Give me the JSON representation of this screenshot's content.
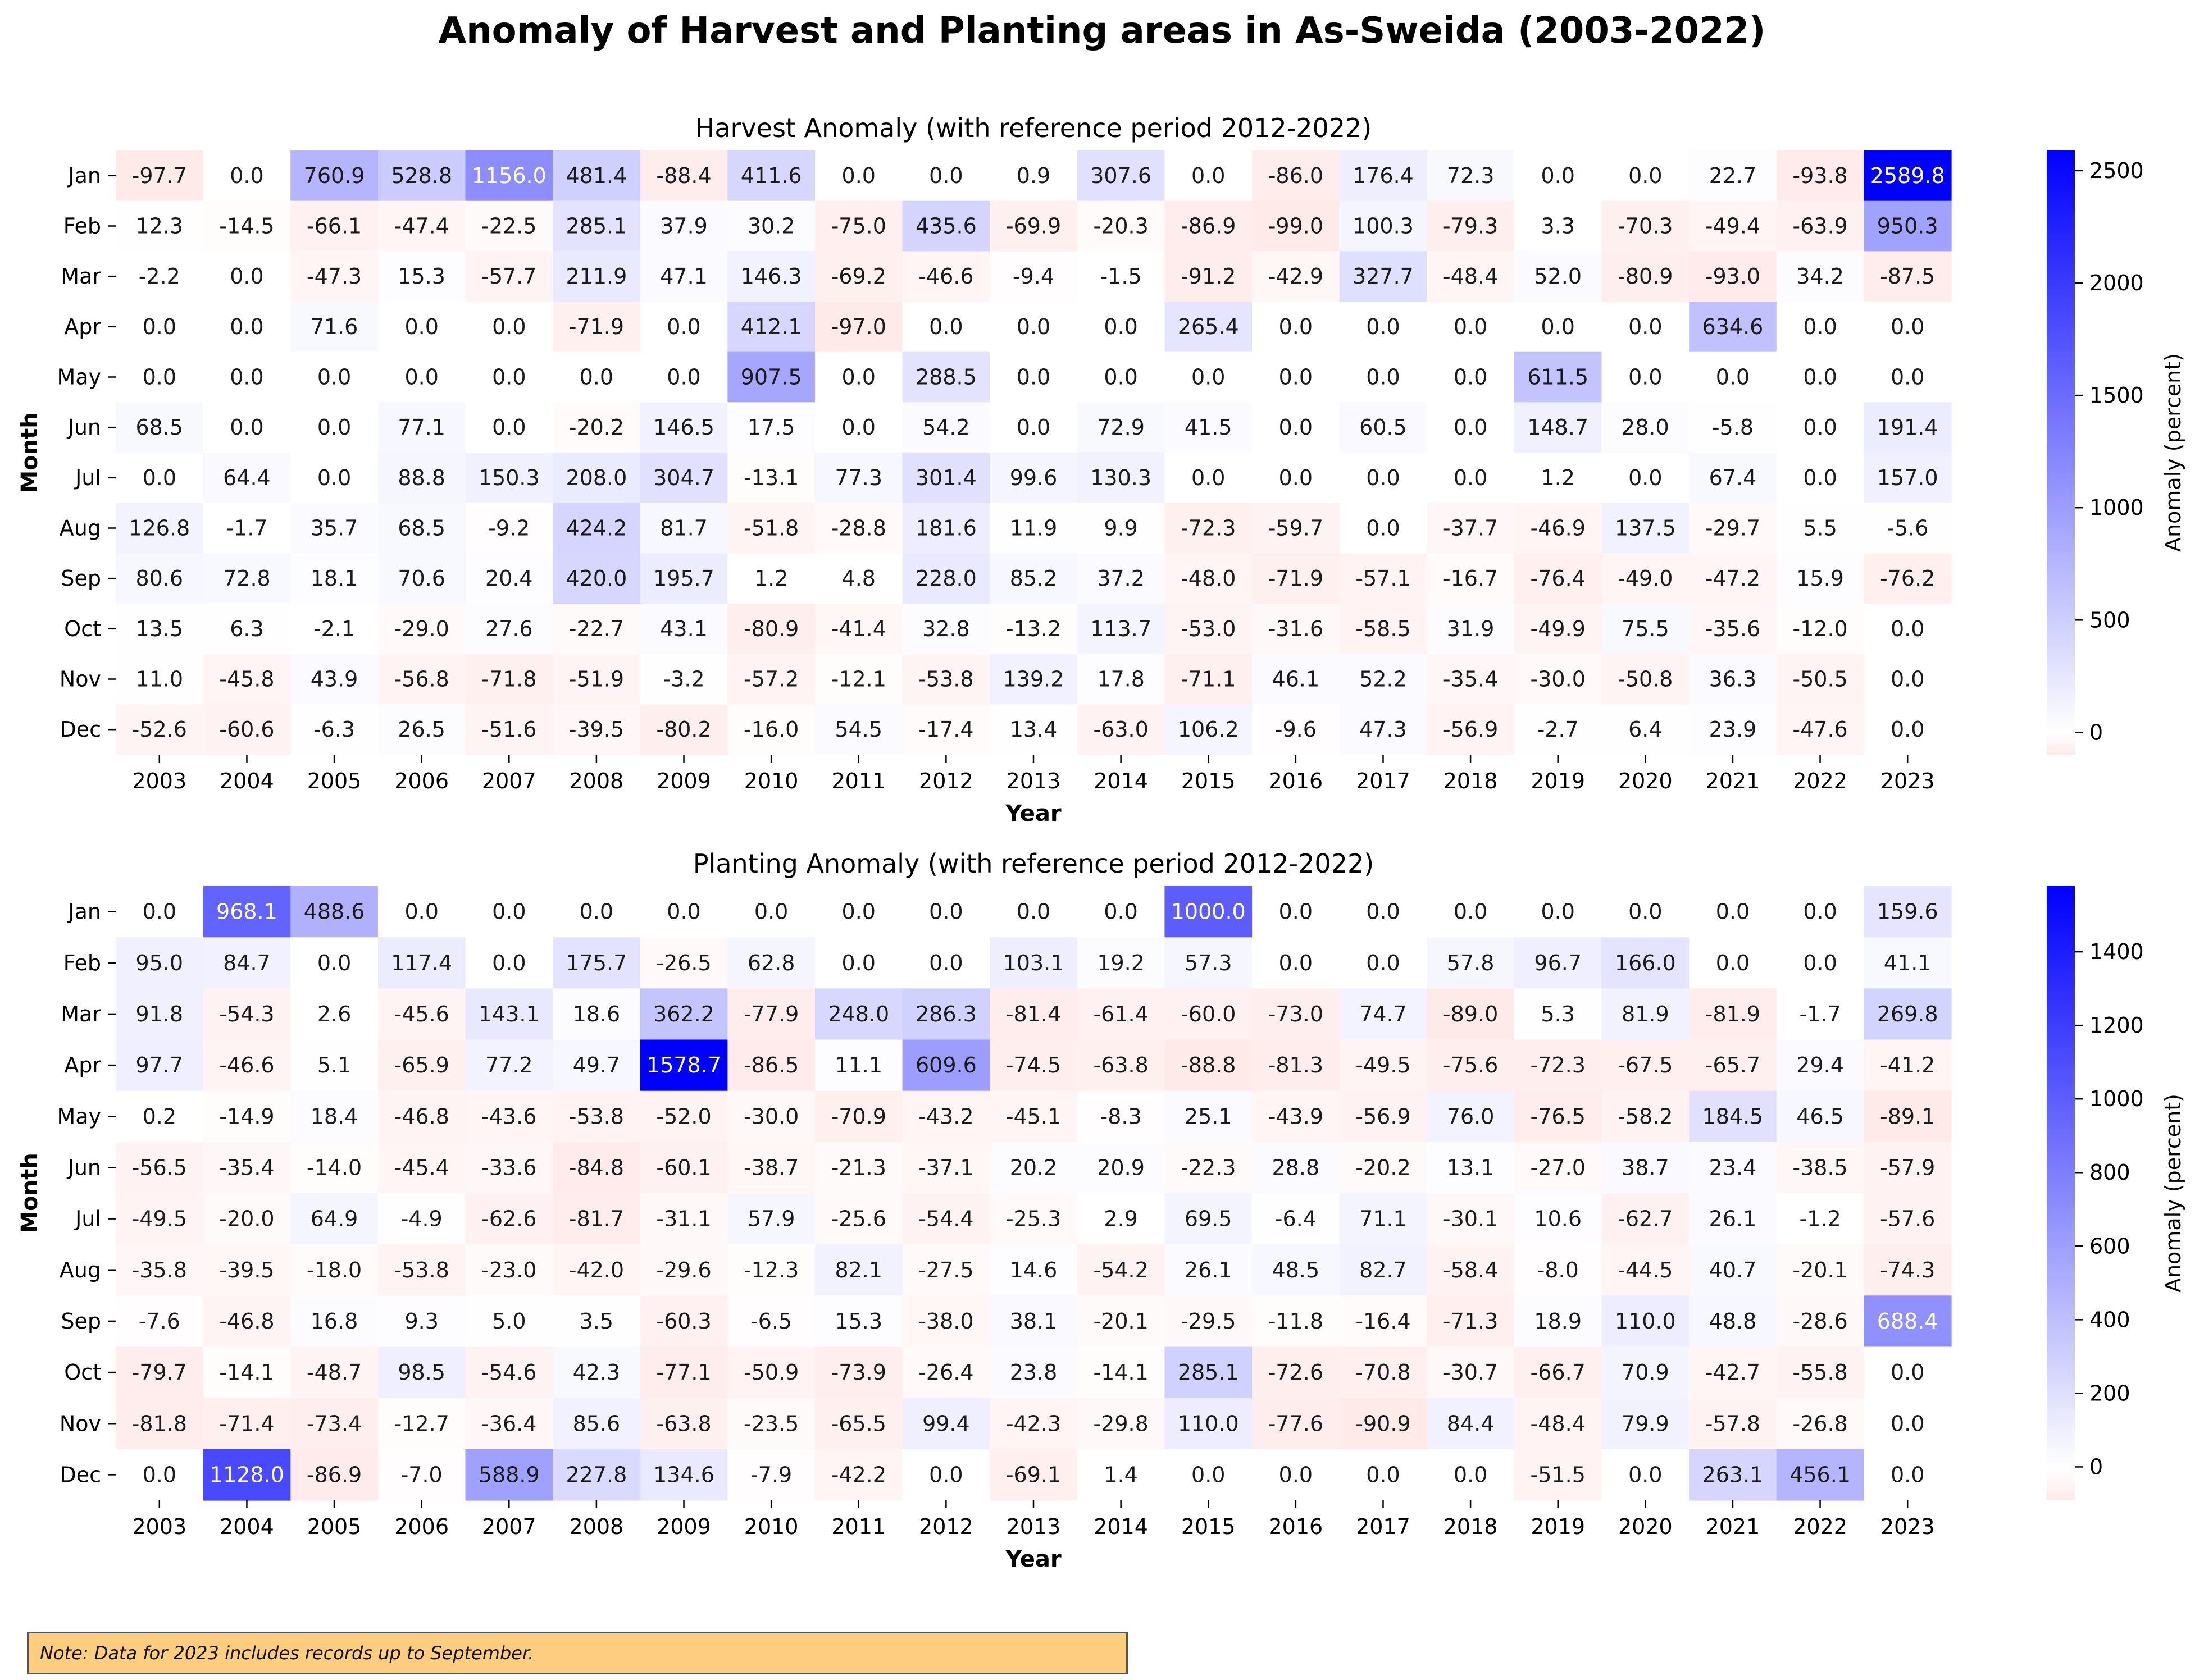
{
  "title": "Anomaly of Harvest and Planting areas in As-Sweida (2003-2022)",
  "note": "Note: Data for 2023 includes records up to September.",
  "colors": {
    "negative": "#ffeaea",
    "zero": "#ffffff",
    "positive": "#0000ff"
  },
  "chart_data": [
    {
      "type": "heatmap",
      "title": "Harvest Anomaly (with reference period 2012-2022)",
      "xlabel": "Year",
      "ylabel": "Month",
      "colorbar_label": "Anomaly (percent)",
      "colorbar_ticks": [
        0,
        500,
        1000,
        1500,
        2000,
        2500
      ],
      "colorbar_tick_labels": [
        "0",
        "500",
        "1000",
        "1500",
        "2000",
        "2500"
      ],
      "vmin": -99.0,
      "vmax": 2589.8,
      "x": [
        "2003",
        "2004",
        "2005",
        "2006",
        "2007",
        "2008",
        "2009",
        "2010",
        "2011",
        "2012",
        "2013",
        "2014",
        "2015",
        "2016",
        "2017",
        "2018",
        "2019",
        "2020",
        "2021",
        "2022",
        "2023"
      ],
      "y": [
        "Jan",
        "Feb",
        "Mar",
        "Apr",
        "May",
        "Jun",
        "Jul",
        "Aug",
        "Sep",
        "Oct",
        "Nov",
        "Dec"
      ],
      "values": [
        [
          -97.7,
          0.0,
          760.9,
          528.8,
          1156.0,
          481.4,
          -88.4,
          411.6,
          0.0,
          0.0,
          0.9,
          307.6,
          0.0,
          -86.0,
          176.4,
          72.3,
          0.0,
          0.0,
          22.7,
          -93.8,
          2589.8
        ],
        [
          12.3,
          -14.5,
          -66.1,
          -47.4,
          -22.5,
          285.1,
          37.9,
          30.2,
          -75.0,
          435.6,
          -69.9,
          -20.3,
          -86.9,
          -99.0,
          100.3,
          -79.3,
          3.3,
          -70.3,
          -49.4,
          -63.9,
          950.3
        ],
        [
          -2.2,
          0.0,
          -47.3,
          15.3,
          -57.7,
          211.9,
          47.1,
          146.3,
          -69.2,
          -46.6,
          -9.4,
          -1.5,
          -91.2,
          -42.9,
          327.7,
          -48.4,
          52.0,
          -80.9,
          -93.0,
          34.2,
          -87.5
        ],
        [
          0.0,
          0.0,
          71.6,
          0.0,
          0.0,
          -71.9,
          0.0,
          412.1,
          -97.0,
          0.0,
          0.0,
          0.0,
          265.4,
          0.0,
          0.0,
          0.0,
          0.0,
          0.0,
          634.6,
          0.0,
          0.0
        ],
        [
          0.0,
          0.0,
          0.0,
          0.0,
          0.0,
          0.0,
          0.0,
          907.5,
          0.0,
          288.5,
          0.0,
          0.0,
          0.0,
          0.0,
          0.0,
          0.0,
          611.5,
          0.0,
          0.0,
          0.0,
          0.0
        ],
        [
          68.5,
          0.0,
          0.0,
          77.1,
          0.0,
          -20.2,
          146.5,
          17.5,
          0.0,
          54.2,
          0.0,
          72.9,
          41.5,
          0.0,
          60.5,
          0.0,
          148.7,
          28.0,
          -5.8,
          0.0,
          191.4
        ],
        [
          0.0,
          64.4,
          0.0,
          88.8,
          150.3,
          208.0,
          304.7,
          -13.1,
          77.3,
          301.4,
          99.6,
          130.3,
          0.0,
          0.0,
          0.0,
          0.0,
          1.2,
          0.0,
          67.4,
          0.0,
          157.0
        ],
        [
          126.8,
          -1.7,
          35.7,
          68.5,
          -9.2,
          424.2,
          81.7,
          -51.8,
          -28.8,
          181.6,
          11.9,
          9.9,
          -72.3,
          -59.7,
          0.0,
          -37.7,
          -46.9,
          137.5,
          -29.7,
          5.5,
          -5.6
        ],
        [
          80.6,
          72.8,
          18.1,
          70.6,
          20.4,
          420.0,
          195.7,
          1.2,
          4.8,
          228.0,
          85.2,
          37.2,
          -48.0,
          -71.9,
          -57.1,
          -16.7,
          -76.4,
          -49.0,
          -47.2,
          15.9,
          -76.2
        ],
        [
          13.5,
          6.3,
          -2.1,
          -29.0,
          27.6,
          -22.7,
          43.1,
          -80.9,
          -41.4,
          32.8,
          -13.2,
          113.7,
          -53.0,
          -31.6,
          -58.5,
          31.9,
          -49.9,
          75.5,
          -35.6,
          -12.0,
          0.0
        ],
        [
          11.0,
          -45.8,
          43.9,
          -56.8,
          -71.8,
          -51.9,
          -3.2,
          -57.2,
          -12.1,
          -53.8,
          139.2,
          17.8,
          -71.1,
          46.1,
          52.2,
          -35.4,
          -30.0,
          -50.8,
          36.3,
          -50.5,
          0.0
        ],
        [
          -52.6,
          -60.6,
          -6.3,
          26.5,
          -51.6,
          -39.5,
          -80.2,
          -16.0,
          54.5,
          -17.4,
          13.4,
          -63.0,
          106.2,
          -9.6,
          47.3,
          -56.9,
          -2.7,
          6.4,
          23.9,
          -47.6,
          0.0
        ]
      ]
    },
    {
      "type": "heatmap",
      "title": "Planting Anomaly (with reference period 2012-2022)",
      "xlabel": "Year",
      "ylabel": "Month",
      "colorbar_label": "Anomaly (percent)",
      "colorbar_ticks": [
        0,
        200,
        400,
        600,
        800,
        1000,
        1200,
        1400
      ],
      "colorbar_tick_labels": [
        "0",
        "200",
        "400",
        "600",
        "800",
        "1000",
        "1200",
        "1400"
      ],
      "vmin": -90.9,
      "vmax": 1578.7,
      "x": [
        "2003",
        "2004",
        "2005",
        "2006",
        "2007",
        "2008",
        "2009",
        "2010",
        "2011",
        "2012",
        "2013",
        "2014",
        "2015",
        "2016",
        "2017",
        "2018",
        "2019",
        "2020",
        "2021",
        "2022",
        "2023"
      ],
      "y": [
        "Jan",
        "Feb",
        "Mar",
        "Apr",
        "May",
        "Jun",
        "Jul",
        "Aug",
        "Sep",
        "Oct",
        "Nov",
        "Dec"
      ],
      "values": [
        [
          0.0,
          968.1,
          488.6,
          0.0,
          0.0,
          0.0,
          0.0,
          0.0,
          0.0,
          0.0,
          0.0,
          0.0,
          1000.0,
          0.0,
          0.0,
          0.0,
          0.0,
          0.0,
          0.0,
          0.0,
          159.6
        ],
        [
          95.0,
          84.7,
          0.0,
          117.4,
          0.0,
          175.7,
          -26.5,
          62.8,
          0.0,
          0.0,
          103.1,
          19.2,
          57.3,
          0.0,
          0.0,
          57.8,
          96.7,
          166.0,
          0.0,
          0.0,
          41.1
        ],
        [
          91.8,
          -54.3,
          2.6,
          -45.6,
          143.1,
          18.6,
          362.2,
          -77.9,
          248.0,
          286.3,
          -81.4,
          -61.4,
          -60.0,
          -73.0,
          74.7,
          -89.0,
          5.3,
          81.9,
          -81.9,
          -1.7,
          269.8
        ],
        [
          97.7,
          -46.6,
          5.1,
          -65.9,
          77.2,
          49.7,
          1578.7,
          -86.5,
          11.1,
          609.6,
          -74.5,
          -63.8,
          -88.8,
          -81.3,
          -49.5,
          -75.6,
          -72.3,
          -67.5,
          -65.7,
          29.4,
          -41.2
        ],
        [
          0.2,
          -14.9,
          18.4,
          -46.8,
          -43.6,
          -53.8,
          -52.0,
          -30.0,
          -70.9,
          -43.2,
          -45.1,
          -8.3,
          25.1,
          -43.9,
          -56.9,
          76.0,
          -76.5,
          -58.2,
          184.5,
          46.5,
          -89.1
        ],
        [
          -56.5,
          -35.4,
          -14.0,
          -45.4,
          -33.6,
          -84.8,
          -60.1,
          -38.7,
          -21.3,
          -37.1,
          20.2,
          20.9,
          -22.3,
          28.8,
          -20.2,
          13.1,
          -27.0,
          38.7,
          23.4,
          -38.5,
          -57.9
        ],
        [
          -49.5,
          -20.0,
          64.9,
          -4.9,
          -62.6,
          -81.7,
          -31.1,
          57.9,
          -25.6,
          -54.4,
          -25.3,
          2.9,
          69.5,
          -6.4,
          71.1,
          -30.1,
          10.6,
          -62.7,
          26.1,
          -1.2,
          -57.6
        ],
        [
          -35.8,
          -39.5,
          -18.0,
          -53.8,
          -23.0,
          -42.0,
          -29.6,
          -12.3,
          82.1,
          -27.5,
          14.6,
          -54.2,
          26.1,
          48.5,
          82.7,
          -58.4,
          -8.0,
          -44.5,
          40.7,
          -20.1,
          -74.3
        ],
        [
          -7.6,
          -46.8,
          16.8,
          9.3,
          5.0,
          3.5,
          -60.3,
          -6.5,
          15.3,
          -38.0,
          38.1,
          -20.1,
          -29.5,
          -11.8,
          -16.4,
          -71.3,
          18.9,
          110.0,
          48.8,
          -28.6,
          688.4
        ],
        [
          -79.7,
          -14.1,
          -48.7,
          98.5,
          -54.6,
          42.3,
          -77.1,
          -50.9,
          -73.9,
          -26.4,
          23.8,
          -14.1,
          285.1,
          -72.6,
          -70.8,
          -30.7,
          -66.7,
          70.9,
          -42.7,
          -55.8,
          0.0
        ],
        [
          -81.8,
          -71.4,
          -73.4,
          -12.7,
          -36.4,
          85.6,
          -63.8,
          -23.5,
          -65.5,
          99.4,
          -42.3,
          -29.8,
          110.0,
          -77.6,
          -90.9,
          84.4,
          -48.4,
          79.9,
          -57.8,
          -26.8,
          0.0
        ],
        [
          0.0,
          1128.0,
          -86.9,
          -7.0,
          588.9,
          227.8,
          134.6,
          -7.9,
          -42.2,
          0.0,
          -69.1,
          1.4,
          0.0,
          0.0,
          0.0,
          0.0,
          -51.5,
          0.0,
          263.1,
          456.1,
          0.0
        ]
      ]
    }
  ]
}
